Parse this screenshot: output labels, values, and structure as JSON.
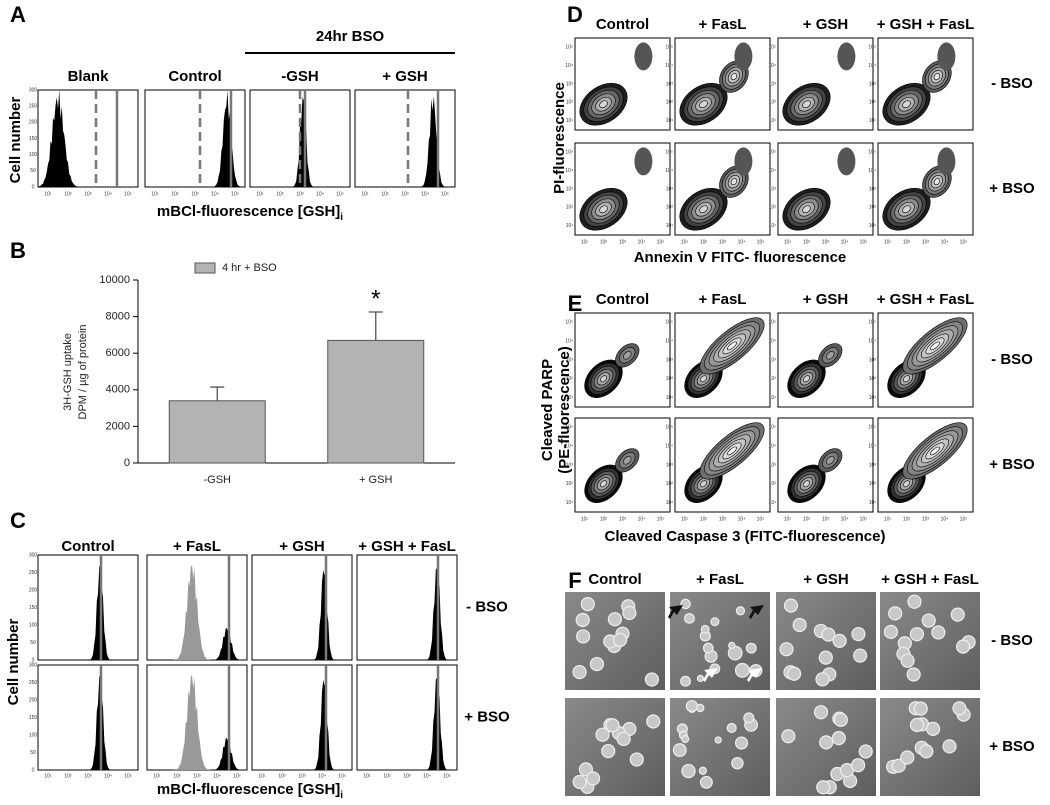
{
  "chart_data": {
    "type": "bar",
    "categories": [
      "-GSH",
      "+ GSH"
    ],
    "series": [
      {
        "name": "4 hr + BSO",
        "color": "#b3b3b3",
        "values": [
          3400,
          6700
        ],
        "errors": [
          750,
          1550
        ]
      }
    ],
    "ylabel": [
      "3H-GSH uptake",
      "DPM / µg of protein"
    ],
    "annotation": "*",
    "ylim": [
      0,
      10000
    ],
    "yticks": [
      0,
      2000,
      4000,
      6000,
      8000,
      10000
    ],
    "grid": false
  },
  "panels": {
    "a": {
      "letter": "A",
      "ylabel": "Cell number",
      "xlabel": "mBCl-fluorescence [GSH]",
      "xlabel_sub": "i",
      "bracket_label": "24hr BSO",
      "columns": [
        "Blank",
        "Control",
        "-GSH",
        "+ GSH"
      ]
    },
    "b": {
      "letter": "B"
    },
    "c": {
      "letter": "C",
      "ylabel": "Cell number",
      "xlabel": "mBCl-fluorescence [GSH]",
      "xlabel_sub": "i",
      "columns": [
        "Control",
        "+ FasL",
        "+ GSH",
        "+ GSH + FasL"
      ],
      "rows": [
        "- BSO",
        "+ BSO"
      ]
    },
    "d": {
      "letter": "D",
      "ylabel": "PI-fluorescence",
      "xlabel": "Annexin V FITC- fluorescence",
      "columns": [
        "Control",
        "+ FasL",
        "+ GSH",
        "+ GSH + FasL"
      ],
      "rows": [
        "- BSO",
        "+ BSO"
      ]
    },
    "e": {
      "letter": "E",
      "ylabel": [
        "Cleaved PARP",
        "(PE-fluorescence)"
      ],
      "xlabel": "Cleaved Caspase 3 (FITC-fluorescence)",
      "columns": [
        "Control",
        "+ FasL",
        "+ GSH",
        "+ GSH + FasL"
      ],
      "rows": [
        "- BSO",
        "+ BSO"
      ]
    },
    "f": {
      "letter": "F",
      "columns": [
        "Control",
        "+ FasL",
        "+ GSH",
        "+ GSH + FasL"
      ],
      "rows": [
        "- BSO",
        "+ BSO"
      ]
    },
    "log_ticks": [
      "10¹",
      "10²",
      "10³",
      "10⁴",
      "10⁵"
    ],
    "count_ticks": [
      "0",
      "50",
      "100",
      "150",
      "200",
      "250",
      "300"
    ]
  }
}
